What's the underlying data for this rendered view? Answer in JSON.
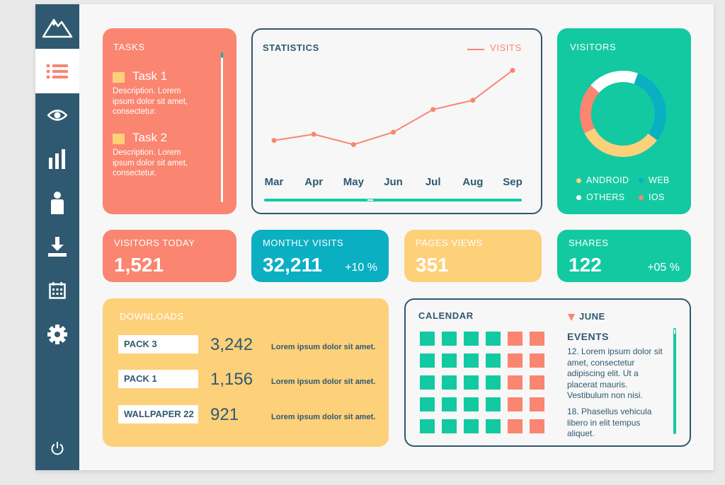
{
  "sidebar": {
    "items": [
      {
        "name": "mountain-logo-icon"
      },
      {
        "name": "list-icon",
        "active": true
      },
      {
        "name": "eye-icon"
      },
      {
        "name": "bar-chart-icon"
      },
      {
        "name": "user-icon"
      },
      {
        "name": "download-icon"
      },
      {
        "name": "calendar-icon"
      },
      {
        "name": "gear-icon"
      },
      {
        "name": "power-icon"
      }
    ]
  },
  "colors": {
    "navy": "#2f5970",
    "coral": "#fa8570",
    "teal": "#0bafc2",
    "green": "#12c9a1",
    "yellow": "#fdd07a"
  },
  "tasks": {
    "title": "TASKS",
    "items": [
      {
        "title": "Task 1",
        "description": "Description. Lorem ipsum dolor sit amet, consectetur."
      },
      {
        "title": "Task 2",
        "description": "Description. Lorem ipsum dolor sit amet, consectetur."
      }
    ]
  },
  "statistics": {
    "title": "STATISTICS",
    "legend": "VISITS"
  },
  "chart_data": {
    "type": "line",
    "title": "STATISTICS",
    "categories": [
      "Mar",
      "Apr",
      "May",
      "Jun",
      "Jul",
      "Aug",
      "Sep"
    ],
    "series": [
      {
        "name": "VISITS",
        "values": [
          40,
          46,
          36,
          48,
          70,
          79,
          108
        ]
      }
    ],
    "ylim": [
      0,
      120
    ],
    "grid": false,
    "legend": "top-right"
  },
  "visitors": {
    "title": "VISITORS",
    "legend": [
      {
        "label": "ANDROID",
        "color": "#fdd07a"
      },
      {
        "label": "WEB",
        "color": "#0bafc2"
      },
      {
        "label": "OTHERS",
        "color": "#ffffff"
      },
      {
        "label": "IOS",
        "color": "#fa8570"
      }
    ],
    "segments": [
      {
        "label": "WEB",
        "fraction": 0.3,
        "color": "#0bafc2"
      },
      {
        "label": "ANDROID",
        "fraction": 0.32,
        "color": "#fdd07a"
      },
      {
        "label": "IOS",
        "fraction": 0.19,
        "color": "#fa8570"
      },
      {
        "label": "OTHERS",
        "fraction": 0.19,
        "color": "#ffffff"
      }
    ]
  },
  "kpis": [
    {
      "label": "VISITORS TODAY",
      "value": "1,521",
      "delta": ""
    },
    {
      "label": "MONTHLY VISITS",
      "value": "32,211",
      "delta": "+10 %"
    },
    {
      "label": "PAGES VIEWS",
      "value": "351",
      "delta": ""
    },
    {
      "label": "SHARES",
      "value": "122",
      "delta": "+05 %"
    }
  ],
  "downloads": {
    "title": "DOWNLOADS",
    "items": [
      {
        "name": "PACK  3",
        "count": "3,242",
        "description": "Lorem ipsum dolor sit amet."
      },
      {
        "name": "PACK  1",
        "count": "1,156",
        "description": "Lorem ipsum dolor sit amet."
      },
      {
        "name": "WALLPAPER 22",
        "count": "921",
        "description": "Lorem ipsum dolor sit amet."
      }
    ]
  },
  "calendar": {
    "title": "CALENDAR",
    "month": "JUNE",
    "events_title": "EVENTS",
    "events": [
      "12. Lorem ipsum dolor sit amet, consectetur adipiscing elit. Ut a placerat mauris. Vestibulum non nisi.",
      "18. Phasellus vehicula libero in elit tempus aliquet."
    ]
  }
}
